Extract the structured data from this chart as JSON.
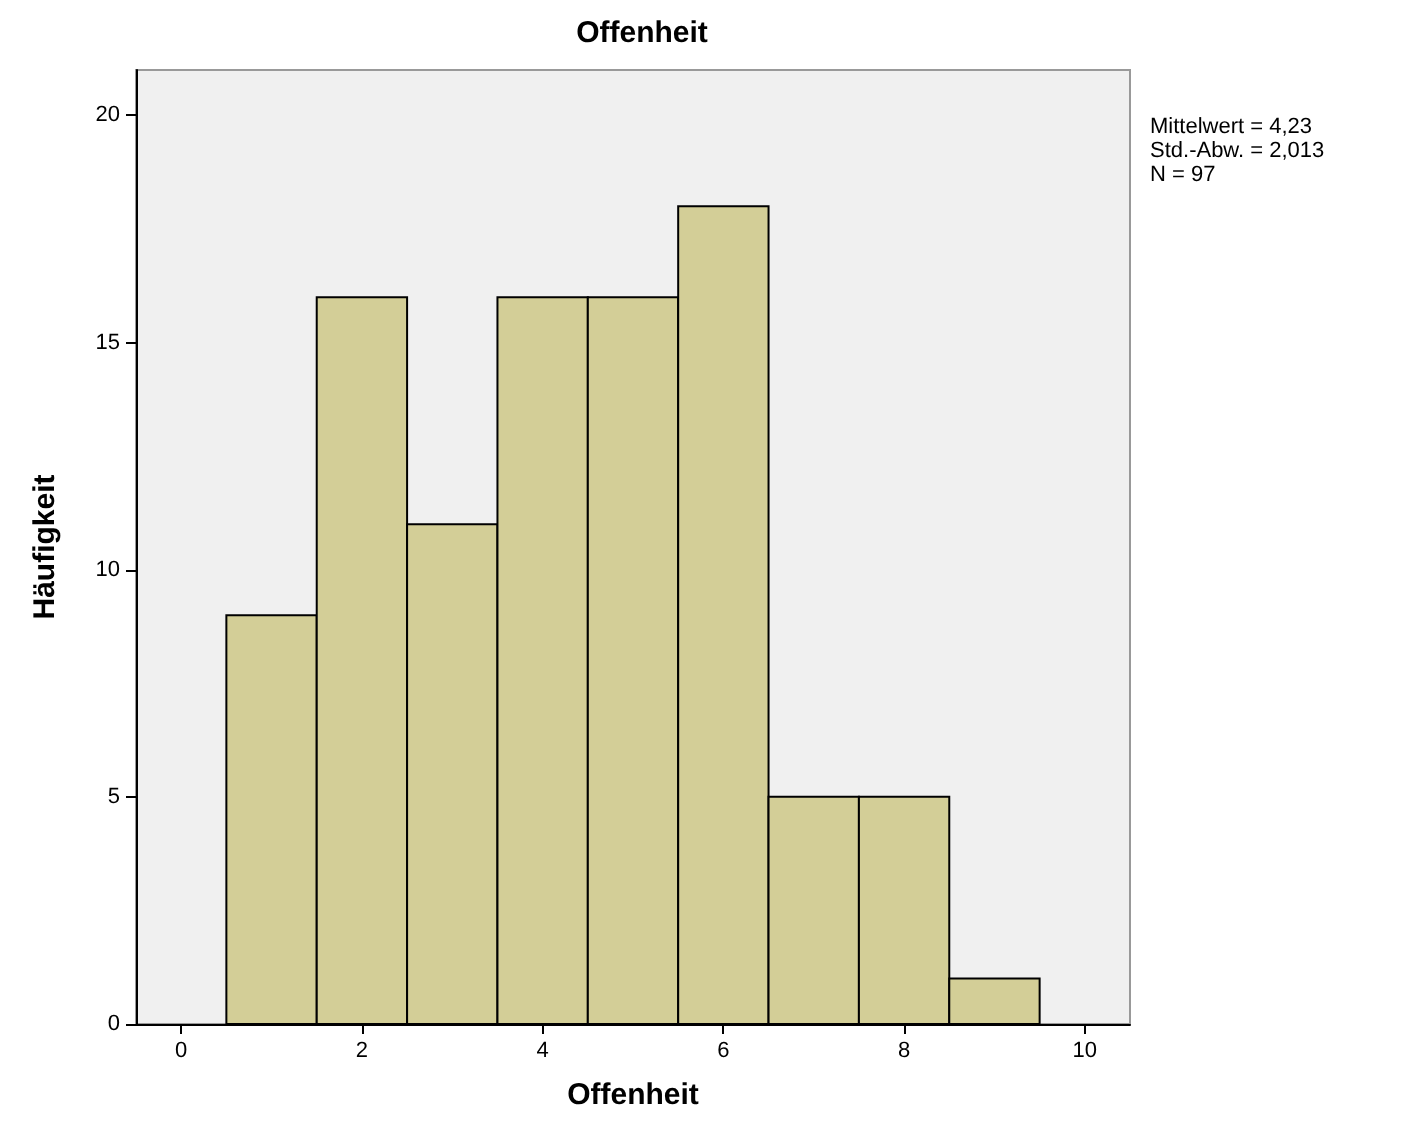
{
  "chart_data": {
    "type": "histogram",
    "title": "Offenheit",
    "xlabel": "Offenheit",
    "ylabel": "Häufigkeit",
    "bins": [
      0.5,
      1.5,
      2.5,
      3.5,
      4.5,
      5.5,
      6.5,
      7.5,
      8.5,
      9.5
    ],
    "values": [
      9,
      16,
      11,
      16,
      16,
      18,
      5,
      5,
      1
    ],
    "color": "#d3ce97",
    "xlim": [
      -0.5,
      10.5
    ],
    "xticks": [
      0,
      2,
      4,
      6,
      8,
      10
    ],
    "ylim": [
      0,
      21
    ],
    "yticks": [
      0,
      5,
      10,
      15,
      20
    ],
    "annotations": [
      "Mittelwert = 4,23",
      "Std.-Abw. = 2,013",
      "N = 97"
    ]
  }
}
